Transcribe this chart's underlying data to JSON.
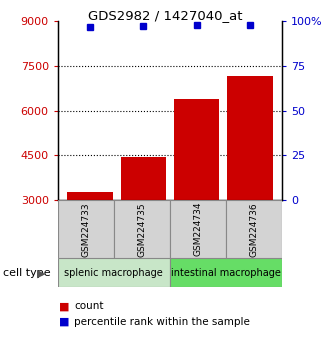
{
  "title": "GDS2982 / 1427040_at",
  "samples": [
    "GSM224733",
    "GSM224735",
    "GSM224734",
    "GSM224736"
  ],
  "counts": [
    3280,
    4450,
    6400,
    7150
  ],
  "percentiles": [
    97,
    97.5,
    98,
    98
  ],
  "ylim_left": [
    3000,
    9000
  ],
  "ylim_right": [
    0,
    100
  ],
  "yticks_left": [
    3000,
    4500,
    6000,
    7500,
    9000
  ],
  "yticks_right": [
    0,
    25,
    50,
    75,
    100
  ],
  "bar_color": "#cc0000",
  "dot_color": "#0000cc",
  "groups": [
    {
      "label": "splenic macrophage",
      "indices": [
        0,
        1
      ],
      "color": "#c8e6c8"
    },
    {
      "label": "intestinal macrophage",
      "indices": [
        2,
        3
      ],
      "color": "#66dd66"
    }
  ],
  "cell_type_label": "cell type",
  "legend": [
    {
      "label": "count",
      "color": "#cc0000"
    },
    {
      "label": "percentile rank within the sample",
      "color": "#0000cc"
    }
  ],
  "x_positions": [
    0,
    1,
    2,
    3
  ],
  "bar_width": 0.85,
  "sample_box_color": "#d3d3d3",
  "sample_box_edge": "#888888"
}
